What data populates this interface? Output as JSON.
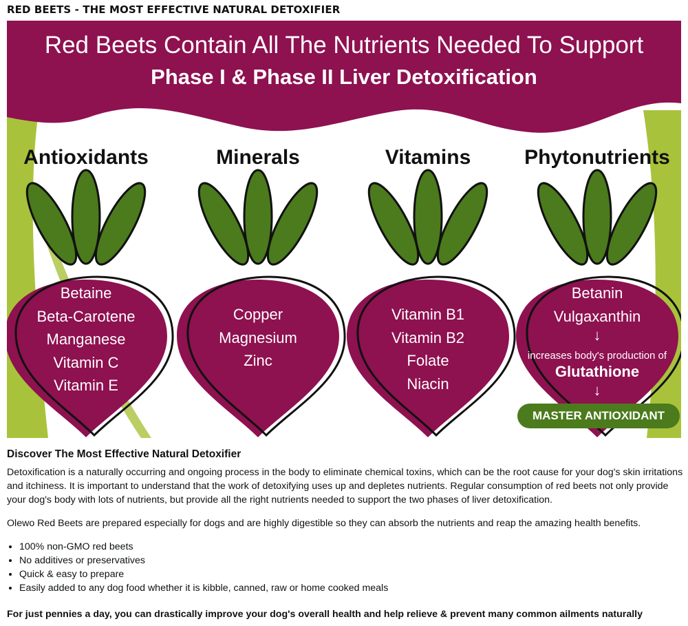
{
  "page_title": "RED BEETS - THE MOST EFFECTIVE NATURAL DETOXIFIER",
  "colors": {
    "maroon": "#8e1150",
    "leaf_green": "#4b7b1c",
    "lime": "#a9c23c",
    "text": "#0f1111"
  },
  "banner": {
    "headline": "Red Beets Contain All The Nutrients Needed To Support",
    "subheadline": "Phase I & Phase II Liver Detoxification",
    "categories": [
      {
        "title": "Antioxidants",
        "items": [
          "Betaine",
          "Beta-Carotene",
          "Manganese",
          "Vitamin C",
          "Vitamin E"
        ]
      },
      {
        "title": "Minerals",
        "items": [
          "Copper",
          "Magnesium",
          "Zinc"
        ]
      },
      {
        "title": "Vitamins",
        "items": [
          "Vitamin  B1",
          "Vitamin B2",
          "Folate",
          "Niacin"
        ]
      },
      {
        "title": "Phytonutrients",
        "items": [
          "Betanin",
          "Vulgaxanthin"
        ]
      }
    ],
    "arrow": "↓",
    "increases_text": "increases body's production of",
    "glutathione": "Glutathione",
    "master_badge": "MASTER ANTIOXIDANT"
  },
  "content": {
    "heading": "Discover The Most Effective Natural Detoxifier",
    "paragraph1": "Detoxification is a naturally occurring and ongoing process in the body to eliminate chemical toxins, which can be the root cause for your dog's skin irritations and itchiness. It is important to understand that the work of detoxifying uses up and depletes nutrients. Regular consumption of red beets not only provide your dog's body with lots of nutrients, but provide all the right nutrients needed to support the two phases of liver detoxification.",
    "paragraph2": "Olewo Red Beets are prepared especially for dogs and are highly digestible so they can absorb the nutrients and reap the amazing health benefits.",
    "bullets": [
      "100% non-GMO red beets",
      "No additives or preservatives",
      "Quick & easy to prepare",
      "Easily added to any dog food whether it is kibble, canned, raw or home cooked meals"
    ],
    "closing": "For just pennies a day, you can drastically improve your dog's overall health and help relieve & prevent many common ailments naturally"
  }
}
